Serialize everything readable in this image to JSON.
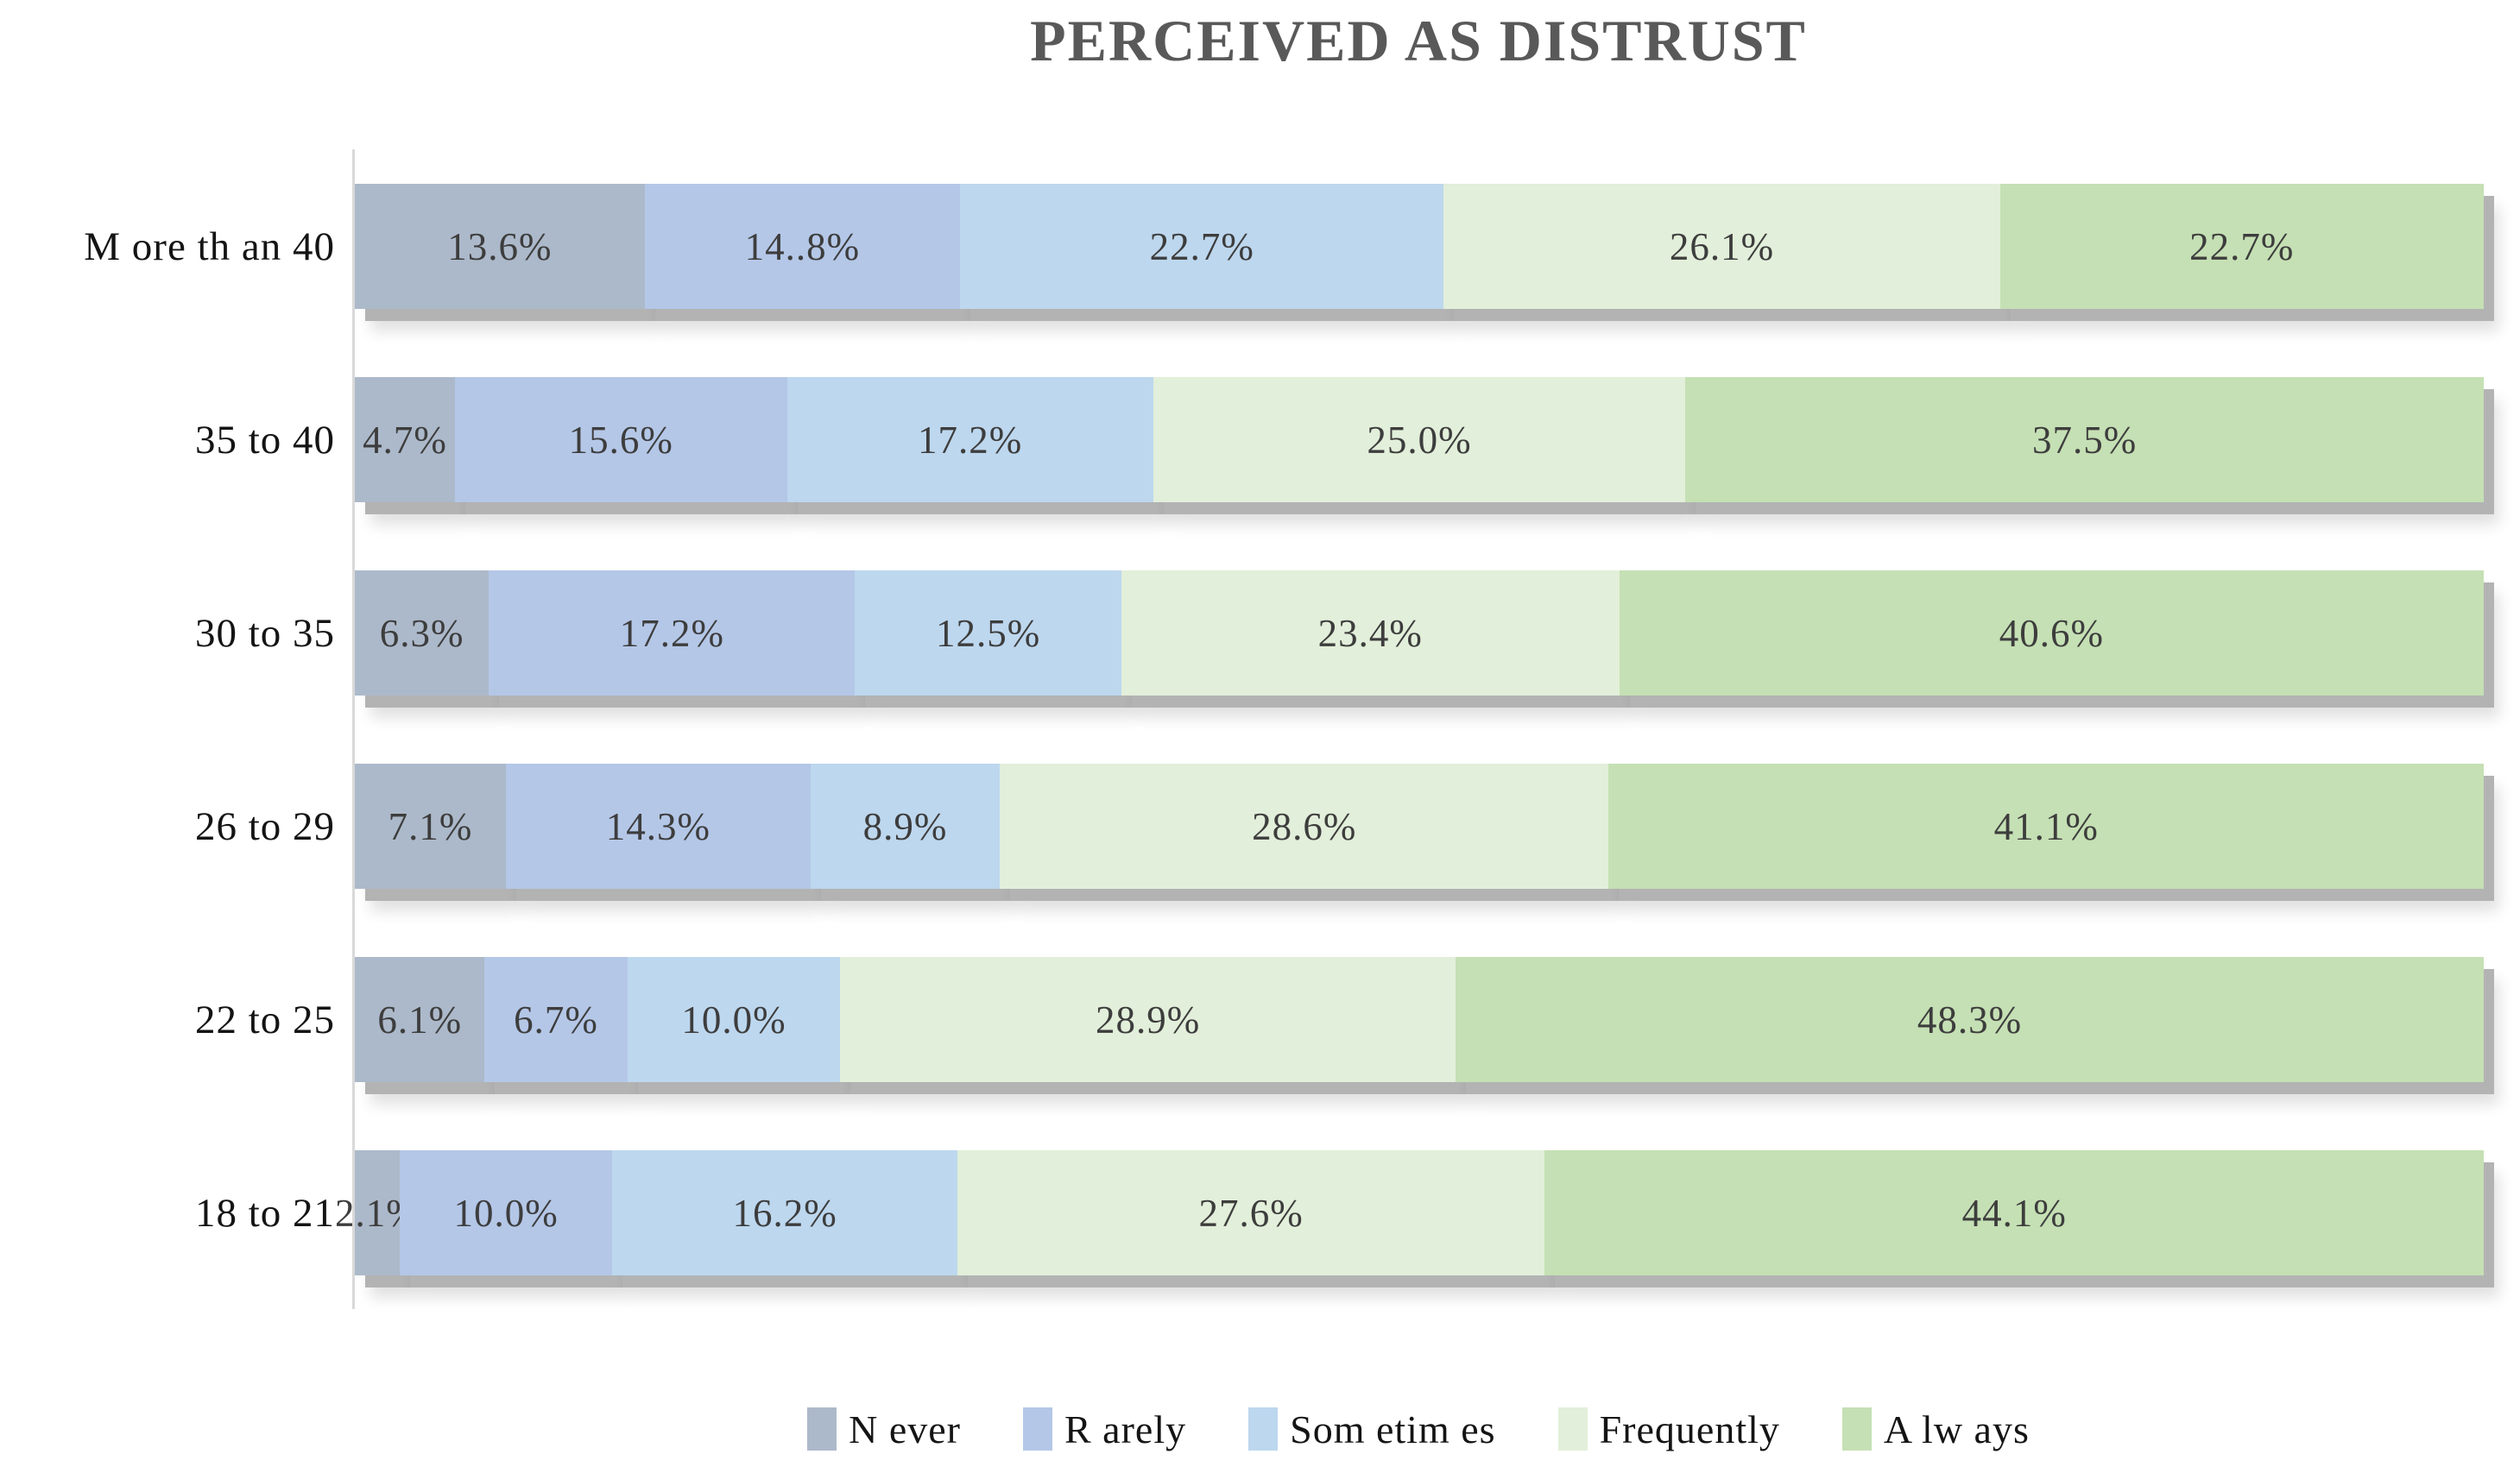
{
  "chart_data": {
    "type": "bar",
    "orientation": "horizontal",
    "stacked": true,
    "title": "PERCEIVED AS DISTRUST",
    "unit": "%",
    "xlim": [
      0,
      100
    ],
    "grid": false,
    "legend_position": "bottom",
    "categories": [
      "M ore th an 40",
      "35 to 40",
      "30 to 35",
      "26 to 29",
      "22 to 25",
      "18 to 21"
    ],
    "series": [
      {
        "name": "N ever",
        "color": "#ACB9CA",
        "values": [
          13.6,
          4.7,
          6.3,
          7.1,
          6.1,
          2.1
        ]
      },
      {
        "name": "R arely",
        "color": "#B4C7E7",
        "values": [
          14.8,
          15.6,
          17.2,
          14.3,
          6.7,
          10.0
        ]
      },
      {
        "name": "Som etim es",
        "color": "#BDD7EE",
        "values": [
          22.7,
          17.2,
          12.5,
          8.9,
          10.0,
          16.2
        ]
      },
      {
        "name": "Frequently",
        "color": "#E2EFDA",
        "values": [
          26.1,
          25.0,
          23.4,
          28.6,
          28.9,
          27.6
        ]
      },
      {
        "name": "A lw ays",
        "color": "#C5E0B4",
        "values": [
          22.7,
          37.5,
          40.6,
          41.1,
          48.3,
          44.1
        ]
      }
    ],
    "segment_labels": [
      [
        "13.6%",
        "14..8%",
        "22.7%",
        "26.1%",
        "22.7%"
      ],
      [
        "4.7%",
        "15.6%",
        "17.2%",
        "25.0%",
        "37.5%"
      ],
      [
        "6.3%",
        "17.2%",
        "12.5%",
        "23.4%",
        "40.6%"
      ],
      [
        "7.1%",
        "14.3%",
        "8.9%",
        "28.6%",
        "41.1%"
      ],
      [
        "6.1%",
        "6.7%",
        "10.0%",
        "28.9%",
        "48.3%"
      ],
      [
        "2.1%",
        "10.0%",
        "16.2%",
        "27.6%",
        "44.1%"
      ]
    ]
  },
  "colors": {
    "title": "#595959",
    "segment_label": "#3D3D3D",
    "axis_line": "#D9D9D9",
    "bar_shadow": "#B3B3B3",
    "background": "#FFFFFF"
  }
}
